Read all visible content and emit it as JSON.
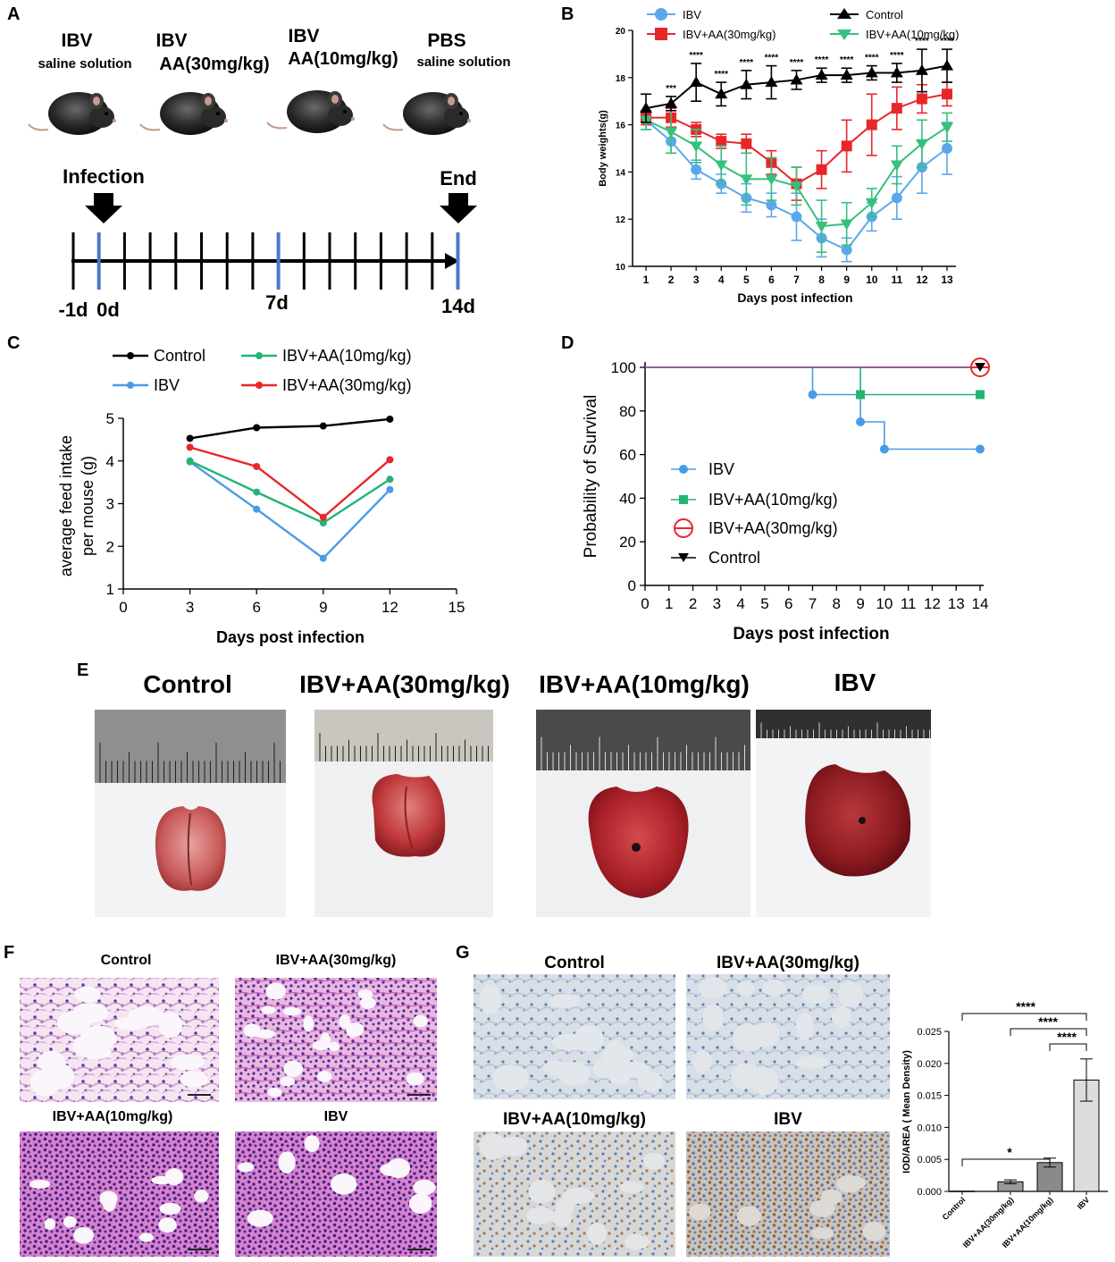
{
  "panels": {
    "A": {
      "letter": "A",
      "groups": [
        {
          "line1": "IBV",
          "line2": "saline solution"
        },
        {
          "line1": "IBV",
          "line2": "AA(30mg/kg)"
        },
        {
          "line1": "IBV",
          "line2": "AA(10mg/kg)"
        },
        {
          "line1": "PBS",
          "line2": "saline solution"
        }
      ],
      "infection_label": "Infection",
      "end_label": "End",
      "timeline_labels": [
        "-1d",
        "0d",
        "7d",
        "14d"
      ]
    },
    "B": {
      "letter": "B"
    },
    "C": {
      "letter": "C"
    },
    "D": {
      "letter": "D"
    },
    "E": {
      "letter": "E",
      "titles": [
        "Control",
        "IBV+AA(30mg/kg)",
        "IBV+AA(10mg/kg)",
        "IBV"
      ]
    },
    "F": {
      "letter": "F",
      "titles": [
        "Control",
        "IBV+AA(30mg/kg)",
        "IBV+AA(10mg/kg)",
        "IBV"
      ]
    },
    "G": {
      "letter": "G",
      "titles": [
        "Control",
        "IBV+AA(30mg/kg)",
        "IBV+AA(10mg/kg)",
        "IBV"
      ]
    }
  },
  "colors": {
    "ibv": "#4a9be6",
    "aa30": "#e8262a",
    "aa10": "#22b573",
    "control": "#000000",
    "ibv_b": "#5aa8ea",
    "aa10_b": "#36c07c"
  },
  "chart_data": [
    {
      "id": "B",
      "type": "line",
      "title": "",
      "xlabel": "Days post infection",
      "ylabel": "Body weights(g)",
      "x": [
        1,
        2,
        3,
        4,
        5,
        6,
        7,
        8,
        9,
        10,
        11,
        12,
        13
      ],
      "xlim": [
        1,
        13
      ],
      "ylim": [
        10,
        20
      ],
      "yticks": [
        10,
        12,
        14,
        16,
        18,
        20
      ],
      "series": [
        {
          "name": "IBV",
          "marker": "circle",
          "values": [
            16.2,
            15.3,
            14.1,
            13.5,
            12.9,
            12.6,
            12.1,
            11.2,
            10.7,
            12.1,
            12.9,
            14.2,
            15.0
          ],
          "err": [
            0.4,
            0.5,
            0.4,
            0.4,
            0.6,
            0.5,
            1.0,
            0.8,
            0.5,
            0.6,
            0.9,
            1.1,
            1.1
          ]
        },
        {
          "name": "IBV+AA(30mg/kg)",
          "marker": "square",
          "values": [
            16.3,
            16.3,
            15.8,
            15.3,
            15.2,
            14.4,
            13.5,
            14.1,
            15.1,
            16.0,
            16.7,
            17.1,
            17.3
          ],
          "err": [
            0.3,
            0.4,
            0.3,
            0.3,
            0.4,
            0.5,
            0.7,
            0.8,
            1.1,
            1.3,
            0.9,
            0.6,
            0.5
          ]
        },
        {
          "name": "IBV+AA(10mg/kg)",
          "marker": "triangle-down",
          "values": [
            16.2,
            15.7,
            15.1,
            14.3,
            13.7,
            13.7,
            13.4,
            11.7,
            11.8,
            12.7,
            14.3,
            15.2,
            15.9
          ],
          "err": [
            0.4,
            0.9,
            0.7,
            0.8,
            1.1,
            0.9,
            0.8,
            1.1,
            0.9,
            0.6,
            0.8,
            1.0,
            0.6
          ]
        },
        {
          "name": "Control",
          "marker": "triangle-up",
          "values": [
            16.7,
            16.9,
            17.8,
            17.3,
            17.7,
            17.8,
            17.9,
            18.1,
            18.1,
            18.2,
            18.2,
            18.3,
            18.5
          ],
          "err": [
            0.6,
            0.3,
            0.8,
            0.5,
            0.6,
            0.7,
            0.4,
            0.3,
            0.3,
            0.3,
            0.4,
            0.9,
            0.7
          ]
        }
      ],
      "annotations": [
        {
          "x": 2,
          "text": "***"
        },
        {
          "x": 3,
          "text": "****"
        },
        {
          "x": 4,
          "text": "****"
        },
        {
          "x": 5,
          "text": "****"
        },
        {
          "x": 6,
          "text": "****"
        },
        {
          "x": 7,
          "text": "****"
        },
        {
          "x": 8,
          "text": "****"
        },
        {
          "x": 9,
          "text": "****"
        },
        {
          "x": 10,
          "text": "****"
        },
        {
          "x": 11,
          "text": "****"
        },
        {
          "x": 12,
          "text": "****"
        },
        {
          "x": 13,
          "text": "****"
        }
      ]
    },
    {
      "id": "C",
      "type": "line",
      "xlabel": "Days post infection",
      "ylabel": "average feed intake per mouse (g)",
      "ylabel_line1": "average feed intake",
      "ylabel_line2": "per mouse (g)",
      "x": [
        3,
        6,
        9,
        12
      ],
      "xlim": [
        0,
        15
      ],
      "ylim": [
        1,
        5
      ],
      "xticks": [
        0,
        3,
        6,
        9,
        12,
        15
      ],
      "yticks": [
        1,
        2,
        3,
        4,
        5
      ],
      "series": [
        {
          "name": "Control",
          "values": [
            4.53,
            4.78,
            4.82,
            4.98
          ]
        },
        {
          "name": "IBV",
          "values": [
            3.98,
            2.87,
            1.72,
            3.33
          ]
        },
        {
          "name": "IBV+AA(10mg/kg)",
          "values": [
            4.0,
            3.27,
            2.55,
            3.57
          ]
        },
        {
          "name": "IBV+AA(30mg/kg)",
          "values": [
            4.32,
            3.87,
            2.68,
            4.03
          ]
        }
      ],
      "legend": "top"
    },
    {
      "id": "D",
      "type": "line",
      "xlabel": "Days post infection",
      "ylabel": "Probability of Survival",
      "xlim": [
        0,
        14
      ],
      "ylim": [
        0,
        100
      ],
      "xticks": [
        0,
        1,
        2,
        3,
        4,
        5,
        6,
        7,
        8,
        9,
        10,
        11,
        12,
        13,
        14
      ],
      "yticks": [
        0,
        20,
        40,
        60,
        80,
        100
      ],
      "series": [
        {
          "name": "IBV",
          "steps": [
            [
              0,
              100
            ],
            [
              7,
              87.5
            ],
            [
              9,
              75
            ],
            [
              10,
              62.5
            ],
            [
              14,
              62.5
            ]
          ]
        },
        {
          "name": "IBV+AA(10mg/kg)",
          "steps": [
            [
              0,
              100
            ],
            [
              9,
              87.5
            ],
            [
              14,
              87.5
            ]
          ]
        },
        {
          "name": "IBV+AA(30mg/kg)",
          "steps": [
            [
              0,
              100
            ],
            [
              14,
              100
            ]
          ]
        },
        {
          "name": "Control",
          "steps": [
            [
              0,
              100
            ],
            [
              14,
              100
            ]
          ]
        }
      ],
      "legend": "bottom-left"
    },
    {
      "id": "G",
      "type": "bar",
      "ylabel": "IOD/AREA ( Mean Density)",
      "categories": [
        "Control",
        "IBV+AA(30mg/kg)",
        "IBV+AA(10mg/kg)",
        "IBV"
      ],
      "values": [
        0.0,
        0.0015,
        0.0045,
        0.0174
      ],
      "err": [
        0.0,
        0.0003,
        0.0007,
        0.0033
      ],
      "ylim": [
        0,
        0.025
      ],
      "yticks": [
        "0.000",
        "0.005",
        "0.010",
        "0.015",
        "0.020",
        "0.025"
      ],
      "significance": [
        {
          "from": 0,
          "to": 3,
          "text": "****"
        },
        {
          "from": 1,
          "to": 3,
          "text": "****"
        },
        {
          "from": 2,
          "to": 3,
          "text": "****"
        },
        {
          "from": 0,
          "to": 2,
          "text": "*"
        }
      ]
    }
  ]
}
